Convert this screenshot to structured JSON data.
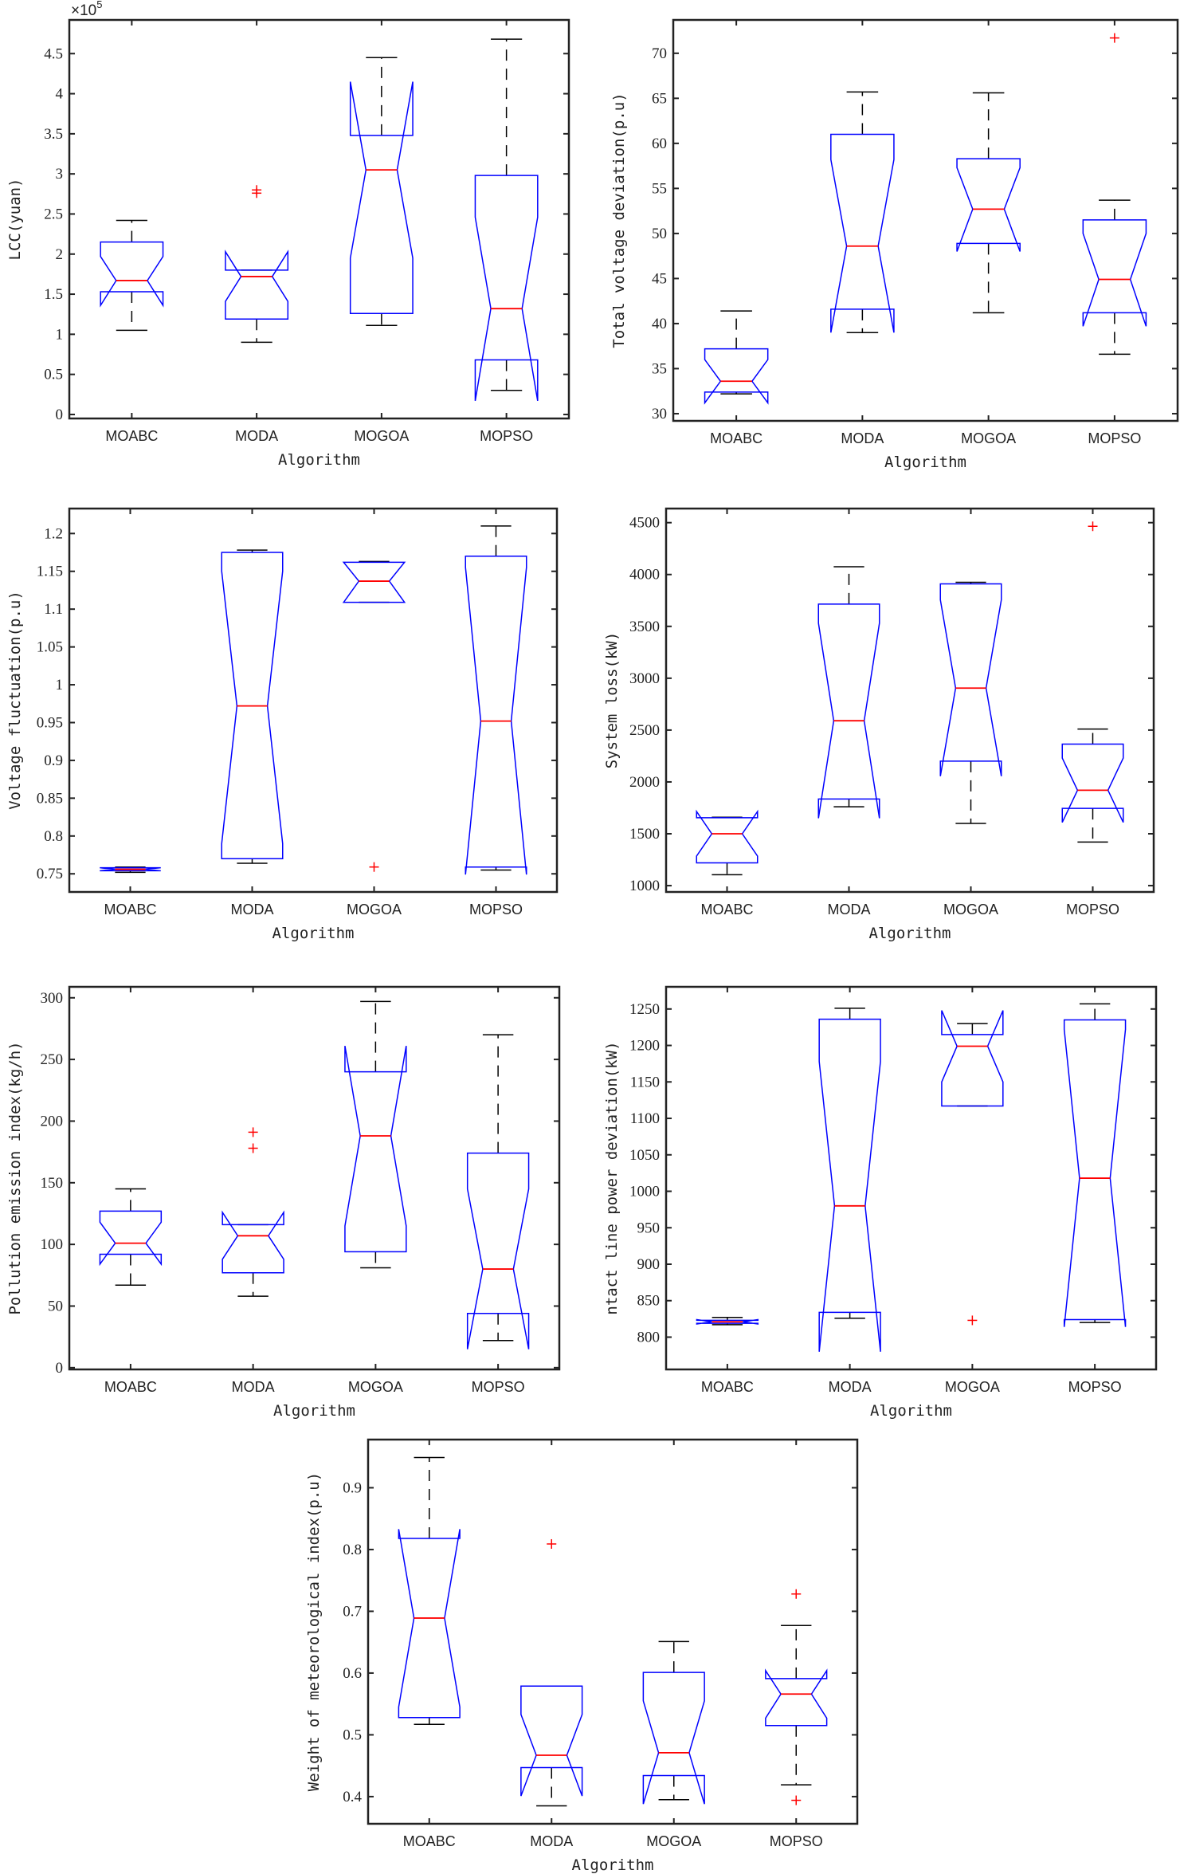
{
  "colors": {
    "box": "#0000ff",
    "median": "#ff0000",
    "whisker": "#000000",
    "outlier": "#ff0000",
    "axes": "#222222"
  },
  "chart_data": [
    {
      "type": "box",
      "notched": true,
      "xlabel": "Algorithm",
      "ylabel": "LCC(yuan)",
      "exponent": {
        "base": "×10",
        "power": "5"
      },
      "categories": [
        "MOABC",
        "MODA",
        "MOGOA",
        "MOPSO"
      ],
      "ylim": [
        -0.05,
        4.92
      ],
      "yticks": [
        0,
        0.5,
        1,
        1.5,
        2,
        2.5,
        3,
        3.5,
        4,
        4.5
      ],
      "ytick_labels": [
        "0",
        "0.5",
        "1",
        "1.5",
        "2",
        "2.5",
        "3",
        "3.5",
        "4",
        "4.5"
      ],
      "boxes": [
        {
          "whisker_low": 1.05,
          "q1": 1.53,
          "median": 1.67,
          "q3": 2.15,
          "whisker_high": 2.42,
          "notch_low": 1.36,
          "notch_high": 1.97,
          "outliers": []
        },
        {
          "whisker_low": 0.9,
          "q1": 1.19,
          "median": 1.72,
          "q3": 1.8,
          "whisker_high": 1.8,
          "notch_low": 1.41,
          "notch_high": 2.03,
          "outliers": [
            2.76,
            2.8
          ]
        },
        {
          "whisker_low": 1.11,
          "q1": 1.26,
          "median": 3.05,
          "q3": 3.48,
          "whisker_high": 4.45,
          "notch_low": 1.95,
          "notch_high": 4.15,
          "outliers": []
        },
        {
          "whisker_low": 0.3,
          "q1": 0.68,
          "median": 1.32,
          "q3": 2.98,
          "whisker_high": 4.68,
          "notch_low": 0.17,
          "notch_high": 2.46,
          "outliers": []
        }
      ]
    },
    {
      "type": "box",
      "notched": true,
      "xlabel": "Algorithm",
      "ylabel": "Total voltage deviation(p.u)",
      "categories": [
        "MOABC",
        "MODA",
        "MOGOA",
        "MOPSO"
      ],
      "ylim": [
        29.2,
        73.7
      ],
      "yticks": [
        30,
        35,
        40,
        45,
        50,
        55,
        60,
        65,
        70
      ],
      "ytick_labels": [
        "30",
        "35",
        "40",
        "45",
        "50",
        "55",
        "60",
        "65",
        "70"
      ],
      "boxes": [
        {
          "whisker_low": 32.2,
          "q1": 32.4,
          "median": 33.6,
          "q3": 37.2,
          "whisker_high": 41.4,
          "notch_low": 31.2,
          "notch_high": 36.0,
          "outliers": []
        },
        {
          "whisker_low": 39.0,
          "q1": 41.6,
          "median": 48.6,
          "q3": 61.0,
          "whisker_high": 65.7,
          "notch_low": 39.0,
          "notch_high": 58.2,
          "outliers": []
        },
        {
          "whisker_low": 41.2,
          "q1": 48.9,
          "median": 52.7,
          "q3": 58.3,
          "whisker_high": 65.6,
          "notch_low": 48.0,
          "notch_high": 57.3,
          "outliers": []
        },
        {
          "whisker_low": 36.6,
          "q1": 41.2,
          "median": 44.9,
          "q3": 51.5,
          "whisker_high": 53.7,
          "notch_low": 39.7,
          "notch_high": 50.0,
          "outliers": [
            71.7
          ]
        }
      ]
    },
    {
      "type": "box",
      "notched": true,
      "xlabel": "Algorithm",
      "ylabel": "Voltage fluctuation(p.u)",
      "categories": [
        "MOABC",
        "MODA",
        "MOGOA",
        "MOPSO"
      ],
      "ylim": [
        0.726,
        1.233
      ],
      "yticks": [
        0.75,
        0.8,
        0.85,
        0.9,
        0.95,
        1,
        1.05,
        1.1,
        1.15,
        1.2
      ],
      "ytick_labels": [
        "0.75",
        "0.8",
        "0.85",
        "0.9",
        "0.95",
        "1",
        "1.05",
        "1.1",
        "1.15",
        "1.2"
      ],
      "boxes": [
        {
          "whisker_low": 0.752,
          "q1": 0.754,
          "median": 0.756,
          "q3": 0.758,
          "whisker_high": 0.759,
          "notch_low": 0.754,
          "notch_high": 0.758,
          "outliers": []
        },
        {
          "whisker_low": 0.764,
          "q1": 0.77,
          "median": 0.972,
          "q3": 1.175,
          "whisker_high": 1.178,
          "notch_low": 0.79,
          "notch_high": 1.15,
          "outliers": []
        },
        {
          "whisker_low": 1.109,
          "q1": 1.109,
          "median": 1.137,
          "q3": 1.162,
          "whisker_high": 1.163,
          "notch_low": 1.109,
          "notch_high": 1.162,
          "outliers": [
            0.759
          ]
        },
        {
          "whisker_low": 0.755,
          "q1": 0.759,
          "median": 0.952,
          "q3": 1.17,
          "whisker_high": 1.21,
          "notch_low": 0.749,
          "notch_high": 1.155,
          "outliers": []
        }
      ]
    },
    {
      "type": "box",
      "notched": true,
      "xlabel": "Algorithm",
      "ylabel": "System loss(kW)",
      "categories": [
        "MOABC",
        "MODA",
        "MOGOA",
        "MOPSO"
      ],
      "ylim": [
        939,
        4636
      ],
      "yticks": [
        1000,
        1500,
        2000,
        2500,
        3000,
        3500,
        4000,
        4500
      ],
      "ytick_labels": [
        "1000",
        "1500",
        "2000",
        "2500",
        "3000",
        "3500",
        "4000",
        "4500"
      ],
      "boxes": [
        {
          "whisker_low": 1105,
          "q1": 1220,
          "median": 1500,
          "q3": 1655,
          "whisker_high": 1660,
          "notch_low": 1285,
          "notch_high": 1715,
          "outliers": []
        },
        {
          "whisker_low": 1760,
          "q1": 1835,
          "median": 2590,
          "q3": 3715,
          "whisker_high": 4075,
          "notch_low": 1650,
          "notch_high": 3530,
          "outliers": []
        },
        {
          "whisker_low": 1600,
          "q1": 2200,
          "median": 2905,
          "q3": 3910,
          "whisker_high": 3925,
          "notch_low": 2055,
          "notch_high": 3755,
          "outliers": []
        },
        {
          "whisker_low": 1420,
          "q1": 1745,
          "median": 1920,
          "q3": 2365,
          "whisker_high": 2510,
          "notch_low": 1610,
          "notch_high": 2230,
          "outliers": [
            4465
          ]
        }
      ]
    },
    {
      "type": "box",
      "notched": true,
      "xlabel": "Algorithm",
      "ylabel": "Pollution emission index(kg/h)",
      "categories": [
        "MOABC",
        "MODA",
        "MOGOA",
        "MOPSO"
      ],
      "ylim": [
        -1.4,
        308.9
      ],
      "yticks": [
        0,
        50,
        100,
        150,
        200,
        250,
        300
      ],
      "ytick_labels": [
        "0",
        "50",
        "100",
        "150",
        "200",
        "250",
        "300"
      ],
      "boxes": [
        {
          "whisker_low": 67,
          "q1": 92,
          "median": 101,
          "q3": 127,
          "whisker_high": 145,
          "notch_low": 84,
          "notch_high": 118,
          "outliers": []
        },
        {
          "whisker_low": 58,
          "q1": 77,
          "median": 107,
          "q3": 116,
          "whisker_high": 116,
          "notch_low": 88,
          "notch_high": 126,
          "outliers": [
            178,
            191
          ]
        },
        {
          "whisker_low": 81,
          "q1": 94,
          "median": 188,
          "q3": 240,
          "whisker_high": 297,
          "notch_low": 115,
          "notch_high": 261,
          "outliers": []
        },
        {
          "whisker_low": 22,
          "q1": 44,
          "median": 80,
          "q3": 174,
          "whisker_high": 270,
          "notch_low": 15,
          "notch_high": 145,
          "outliers": []
        }
      ]
    },
    {
      "type": "box",
      "notched": true,
      "xlabel": "Algorithm",
      "ylabel": "ntact line power deviation(kW)",
      "categories": [
        "MOABC",
        "MODA",
        "MOGOA",
        "MOPSO"
      ],
      "ylim": [
        755.7,
        1280.4
      ],
      "yticks": [
        800,
        850,
        900,
        950,
        1000,
        1050,
        1100,
        1150,
        1200,
        1250
      ],
      "ytick_labels": [
        "800",
        "850",
        "900",
        "950",
        "1000",
        "1050",
        "1100",
        "1150",
        "1200",
        "1250"
      ],
      "boxes": [
        {
          "whisker_low": 817,
          "q1": 819,
          "median": 821,
          "q3": 823,
          "whisker_high": 827,
          "notch_low": 818,
          "notch_high": 824,
          "outliers": []
        },
        {
          "whisker_low": 826,
          "q1": 834,
          "median": 980,
          "q3": 1236,
          "whisker_high": 1251,
          "notch_low": 780,
          "notch_high": 1178,
          "outliers": []
        },
        {
          "whisker_low": 1117,
          "q1": 1117,
          "median": 1199,
          "q3": 1215,
          "whisker_high": 1230,
          "notch_low": 1150,
          "notch_high": 1248,
          "outliers": [
            823
          ]
        },
        {
          "whisker_low": 820,
          "q1": 824,
          "median": 1018,
          "q3": 1235,
          "whisker_high": 1257,
          "notch_low": 814,
          "notch_high": 1222,
          "outliers": []
        }
      ]
    },
    {
      "type": "box",
      "notched": true,
      "xlabel": "Algorithm",
      "ylabel": "Weight of meteorological index(p.u)",
      "categories": [
        "MOABC",
        "MODA",
        "MOGOA",
        "MOPSO"
      ],
      "ylim": [
        0.356,
        0.978
      ],
      "yticks": [
        0.4,
        0.5,
        0.6,
        0.7,
        0.8,
        0.9
      ],
      "ytick_labels": [
        "0.4",
        "0.5",
        "0.6",
        "0.7",
        "0.8",
        "0.9"
      ],
      "boxes": [
        {
          "whisker_low": 0.517,
          "q1": 0.528,
          "median": 0.689,
          "q3": 0.818,
          "whisker_high": 0.949,
          "notch_low": 0.545,
          "notch_high": 0.833,
          "outliers": []
        },
        {
          "whisker_low": 0.385,
          "q1": 0.447,
          "median": 0.467,
          "q3": 0.579,
          "whisker_high": 0.579,
          "notch_low": 0.401,
          "notch_high": 0.533,
          "outliers": [
            0.809
          ]
        },
        {
          "whisker_low": 0.395,
          "q1": 0.434,
          "median": 0.471,
          "q3": 0.601,
          "whisker_high": 0.651,
          "notch_low": 0.388,
          "notch_high": 0.555,
          "outliers": []
        },
        {
          "whisker_low": 0.419,
          "q1": 0.515,
          "median": 0.566,
          "q3": 0.591,
          "whisker_high": 0.677,
          "notch_low": 0.527,
          "notch_high": 0.604,
          "outliers": [
            0.728,
            0.394
          ]
        }
      ]
    }
  ]
}
